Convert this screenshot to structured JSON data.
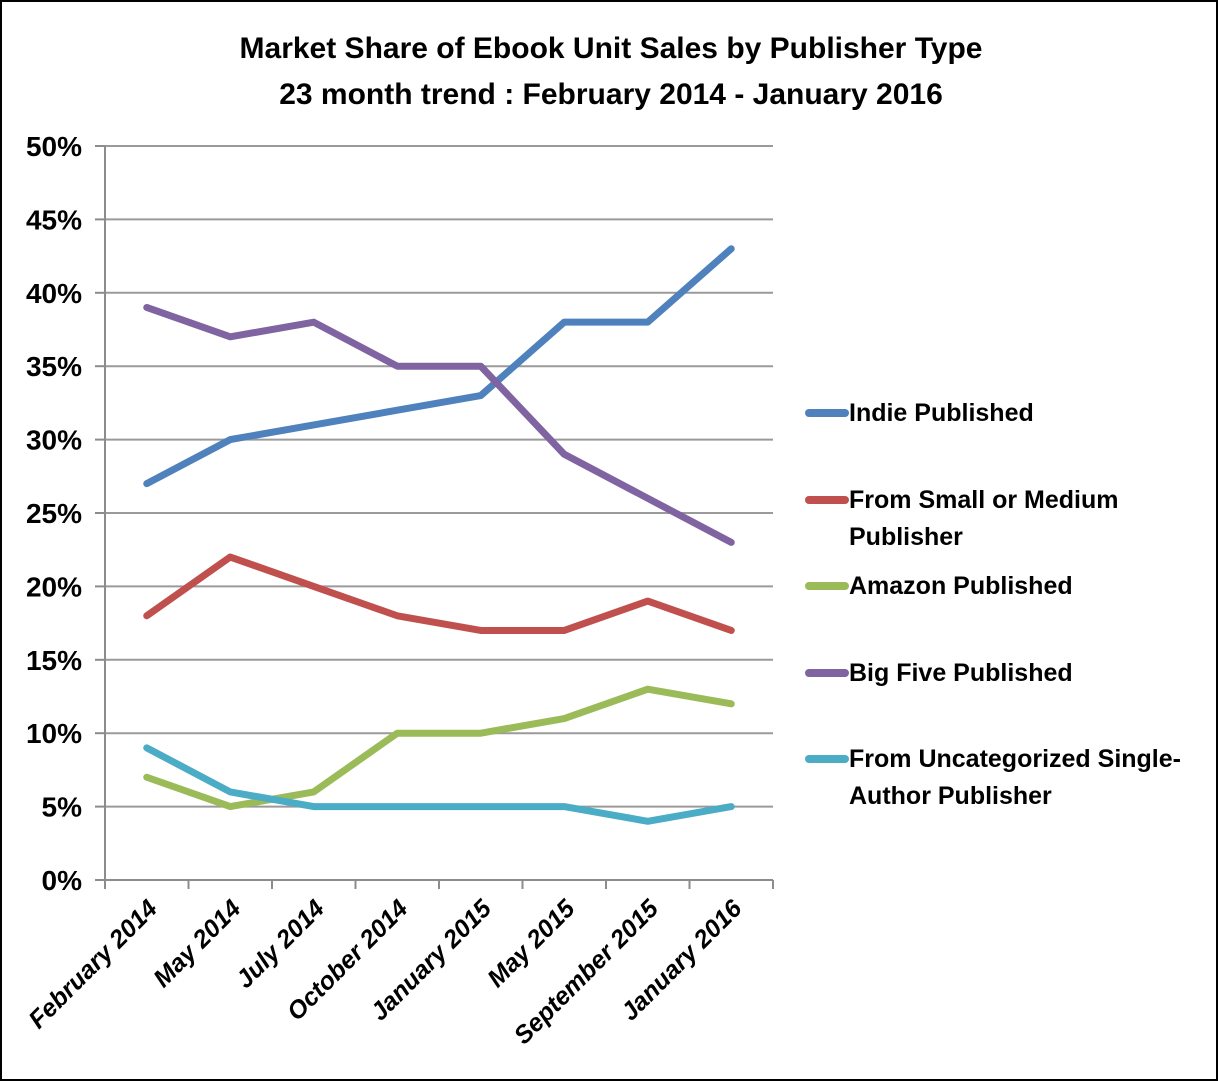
{
  "chart_data": {
    "type": "line",
    "title_line1": "Market Share of Ebook Unit Sales by Publisher Type",
    "title_line2": "23 month trend : February 2014 - January 2016",
    "categories": [
      "February 2014",
      "May 2014",
      "July 2014",
      "October 2014",
      "January 2015",
      "May 2015",
      "September 2015",
      "January 2016"
    ],
    "series": [
      {
        "name": "Indie Published",
        "color": "#4F81BD",
        "values": [
          27,
          30,
          31,
          32,
          33,
          38,
          38,
          43
        ]
      },
      {
        "name": "From Small or Medium Publisher",
        "color": "#C0504D",
        "values": [
          18,
          22,
          20,
          18,
          17,
          17,
          19,
          17
        ]
      },
      {
        "name": "Amazon Published",
        "color": "#9BBB59",
        "values": [
          7,
          5,
          6,
          10,
          10,
          11,
          13,
          12
        ]
      },
      {
        "name": "Big Five Published",
        "color": "#8064A2",
        "values": [
          39,
          37,
          38,
          35,
          35,
          29,
          26,
          23
        ]
      },
      {
        "name": "From Uncategorized Single-Author Publisher",
        "color": "#4BACC6",
        "values": [
          9,
          6,
          5,
          5,
          5,
          5,
          4,
          5
        ]
      }
    ],
    "y_axis": {
      "min": 0,
      "max": 50,
      "step": 5,
      "tick_suffix": "%",
      "tick_labels": [
        "0%",
        "5%",
        "10%",
        "15%",
        "20%",
        "25%",
        "30%",
        "35%",
        "40%",
        "45%",
        "50%"
      ]
    },
    "grid": true,
    "legend_position": "right",
    "colors": {
      "gridline": "#9A9A9A",
      "axis": "#8C8C8C",
      "text": "#000000"
    }
  }
}
